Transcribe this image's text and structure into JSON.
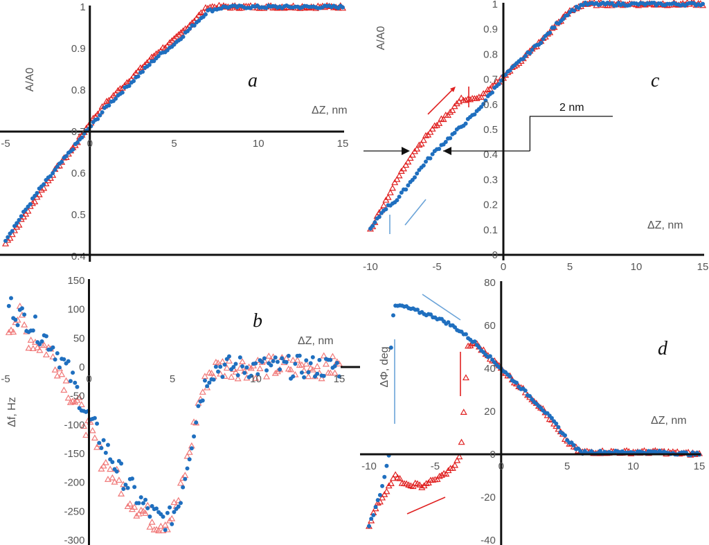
{
  "colors": {
    "red": "#e02020",
    "light_red": "#f07878",
    "blue": "#1f6fbf",
    "light_blue": "#6aa3d8",
    "axis": "#111111"
  },
  "chart_data": [
    {
      "id": "a",
      "type": "scatter",
      "label": "a",
      "xlabel": "ΔZ, nm",
      "ylabel": "A/A0",
      "xlim": [
        -5,
        15
      ],
      "ylim": [
        0.4,
        1.0
      ],
      "xticks": [
        "-5",
        "0",
        "5",
        "10",
        "15"
      ],
      "yticks": [
        "0.4",
        "0.5",
        "0.6",
        "0.7",
        "0.8",
        "0.9",
        "1"
      ],
      "x_axis_crosses_y_at": 0.7,
      "series": [
        {
          "name": "approach (red triangles)",
          "marker": "triangle",
          "color": "red",
          "x": [
            -5,
            -4,
            -3,
            -2,
            -1,
            0,
            1,
            2,
            3,
            4,
            5,
            6,
            7,
            8,
            10,
            12,
            15
          ],
          "y": [
            0.43,
            0.49,
            0.55,
            0.61,
            0.66,
            0.72,
            0.77,
            0.81,
            0.85,
            0.89,
            0.92,
            0.96,
            1.0,
            1.0,
            1.0,
            1.0,
            1.0
          ]
        },
        {
          "name": "retract (blue dots)",
          "marker": "dot",
          "color": "blue",
          "x": [
            -5,
            -4,
            -3,
            -2,
            -1,
            0,
            1,
            2,
            3,
            4,
            5,
            6,
            7,
            8,
            10,
            12,
            15
          ],
          "y": [
            0.44,
            0.5,
            0.56,
            0.61,
            0.66,
            0.71,
            0.76,
            0.8,
            0.84,
            0.88,
            0.91,
            0.95,
            0.99,
            1.0,
            1.0,
            1.0,
            1.0
          ]
        }
      ]
    },
    {
      "id": "b",
      "type": "scatter",
      "label": "b",
      "xlabel": "ΔZ, nm",
      "ylabel": "Δf,  Hz",
      "xlim": [
        -5,
        15
      ],
      "ylim": [
        -300,
        150
      ],
      "xticks": [
        "-5",
        "0",
        "5",
        "10",
        "15"
      ],
      "yticks": [
        "-300",
        "-250",
        "-200",
        "-150",
        "-100",
        "-50",
        "0",
        "50",
        "100",
        "150"
      ],
      "x_axis_crosses_y_at": 0,
      "series": [
        {
          "name": "approach (light red triangles)",
          "marker": "triangle",
          "color": "light_red",
          "x": [
            -4.8,
            -4.2,
            -3.6,
            -3.0,
            -2.4,
            -1.8,
            -1.2,
            -0.6,
            0,
            0.6,
            1.2,
            1.8,
            2.4,
            3.0,
            3.6,
            4.2,
            4.8,
            5.4,
            6.0,
            6.6,
            7.2,
            7.8,
            9,
            11,
            13,
            15
          ],
          "y": [
            70,
            90,
            50,
            40,
            30,
            0,
            -40,
            -70,
            -110,
            -150,
            -180,
            -200,
            -225,
            -245,
            -260,
            -270,
            -265,
            -230,
            -150,
            -60,
            -10,
            0,
            0,
            0,
            0,
            0
          ]
        },
        {
          "name": "retract (blue dots)",
          "marker": "dot",
          "color": "blue",
          "x": [
            -4.8,
            -4.2,
            -3.6,
            -3.0,
            -2.4,
            -1.8,
            -1.2,
            -0.6,
            0,
            0.6,
            1.2,
            1.8,
            2.4,
            3.0,
            3.6,
            4.2,
            4.8,
            5.4,
            6.0,
            6.6,
            7.2,
            7.8,
            9,
            11,
            13,
            15
          ],
          "y": [
            110,
            90,
            80,
            60,
            45,
            20,
            -10,
            -50,
            -90,
            -120,
            -150,
            -180,
            -205,
            -230,
            -250,
            -262,
            -265,
            -235,
            -150,
            -60,
            -10,
            0,
            0,
            0,
            0,
            0
          ]
        }
      ]
    },
    {
      "id": "c",
      "type": "scatter",
      "label": "c",
      "xlabel": "ΔZ, nm",
      "ylabel": "A/A0",
      "xlim": [
        -10,
        15
      ],
      "ylim": [
        0,
        1.0
      ],
      "xticks": [
        "-10",
        "-5",
        "0",
        "5",
        "10",
        "15"
      ],
      "yticks": [
        "0",
        "0.1",
        "0.2",
        "0.3",
        "0.4",
        "0.5",
        "0.6",
        "0.7",
        "0.8",
        "0.9",
        "1"
      ],
      "x_axis_crosses_y_at": 0,
      "annotation": "2 nm",
      "series": [
        {
          "name": "approach (red triangles)",
          "marker": "triangle",
          "color": "red",
          "x": [
            -10,
            -9,
            -8,
            -7,
            -6,
            -5,
            -4,
            -3.2,
            -2.5,
            -2,
            -1,
            0,
            1,
            2,
            3,
            4,
            5,
            6,
            8,
            10,
            12,
            15
          ],
          "y": [
            0.1,
            0.2,
            0.3,
            0.39,
            0.46,
            0.52,
            0.57,
            0.62,
            0.62,
            0.62,
            0.66,
            0.71,
            0.76,
            0.81,
            0.86,
            0.92,
            0.97,
            1.0,
            1.0,
            1.0,
            1.0,
            1.0
          ]
        },
        {
          "name": "retract (blue dots)",
          "marker": "dot",
          "color": "blue",
          "x": [
            -10,
            -9,
            -8.5,
            -8,
            -7,
            -6,
            -5,
            -4,
            -3,
            -2,
            -1,
            0,
            1,
            2,
            3,
            4,
            5,
            6,
            8,
            10,
            12,
            15
          ],
          "y": [
            0.1,
            0.18,
            0.2,
            0.22,
            0.29,
            0.36,
            0.42,
            0.47,
            0.52,
            0.57,
            0.64,
            0.71,
            0.76,
            0.81,
            0.86,
            0.92,
            0.97,
            1.0,
            1.0,
            1.0,
            1.0,
            1.0
          ]
        }
      ]
    },
    {
      "id": "d",
      "type": "scatter",
      "label": "d",
      "xlabel": "ΔZ, nm",
      "ylabel": "ΔΦ, deg",
      "xlim": [
        -10,
        15
      ],
      "ylim": [
        -40,
        80
      ],
      "xticks": [
        "-10",
        "-5",
        "0",
        "5",
        "10",
        "15"
      ],
      "yticks": [
        "-40",
        "-20",
        "0",
        "20",
        "40",
        "60",
        "80"
      ],
      "x_axis_crosses_y_at": 0,
      "series": [
        {
          "name": "approach (red triangles)",
          "marker": "triangle",
          "color": "red",
          "x": [
            -10,
            -9.5,
            -9,
            -8.5,
            -8,
            -7.5,
            -7,
            -6.5,
            -6,
            -5.5,
            -5,
            -4.5,
            -4,
            -3.5,
            -3.2,
            -3.0,
            -2.5,
            -2,
            -1,
            0,
            1,
            2,
            3,
            4,
            5,
            6,
            8,
            10,
            12,
            15
          ],
          "y": [
            -33,
            -25,
            -20,
            -15,
            -10,
            -13,
            -15,
            -14,
            -15,
            -13,
            -12,
            -10,
            -8,
            -5,
            -2,
            5,
            50,
            52,
            46,
            40,
            34,
            28,
            22,
            14,
            6,
            1,
            1,
            1,
            1,
            0
          ]
        },
        {
          "name": "retract (blue dots)",
          "marker": "dot",
          "color": "blue",
          "x": [
            -10,
            -9.5,
            -9,
            -8.5,
            -8.3,
            -8.0,
            -7.5,
            -7,
            -6,
            -5,
            -4,
            -3,
            -2,
            -1,
            0,
            1,
            2,
            3,
            4,
            5,
            6,
            8,
            10,
            12,
            15
          ],
          "y": [
            -33,
            -25,
            -15,
            0,
            60,
            69,
            69,
            68,
            66,
            64,
            61,
            57,
            52,
            46,
            40,
            34,
            28,
            22,
            15,
            7,
            1,
            1,
            1,
            1,
            0
          ]
        }
      ]
    }
  ]
}
